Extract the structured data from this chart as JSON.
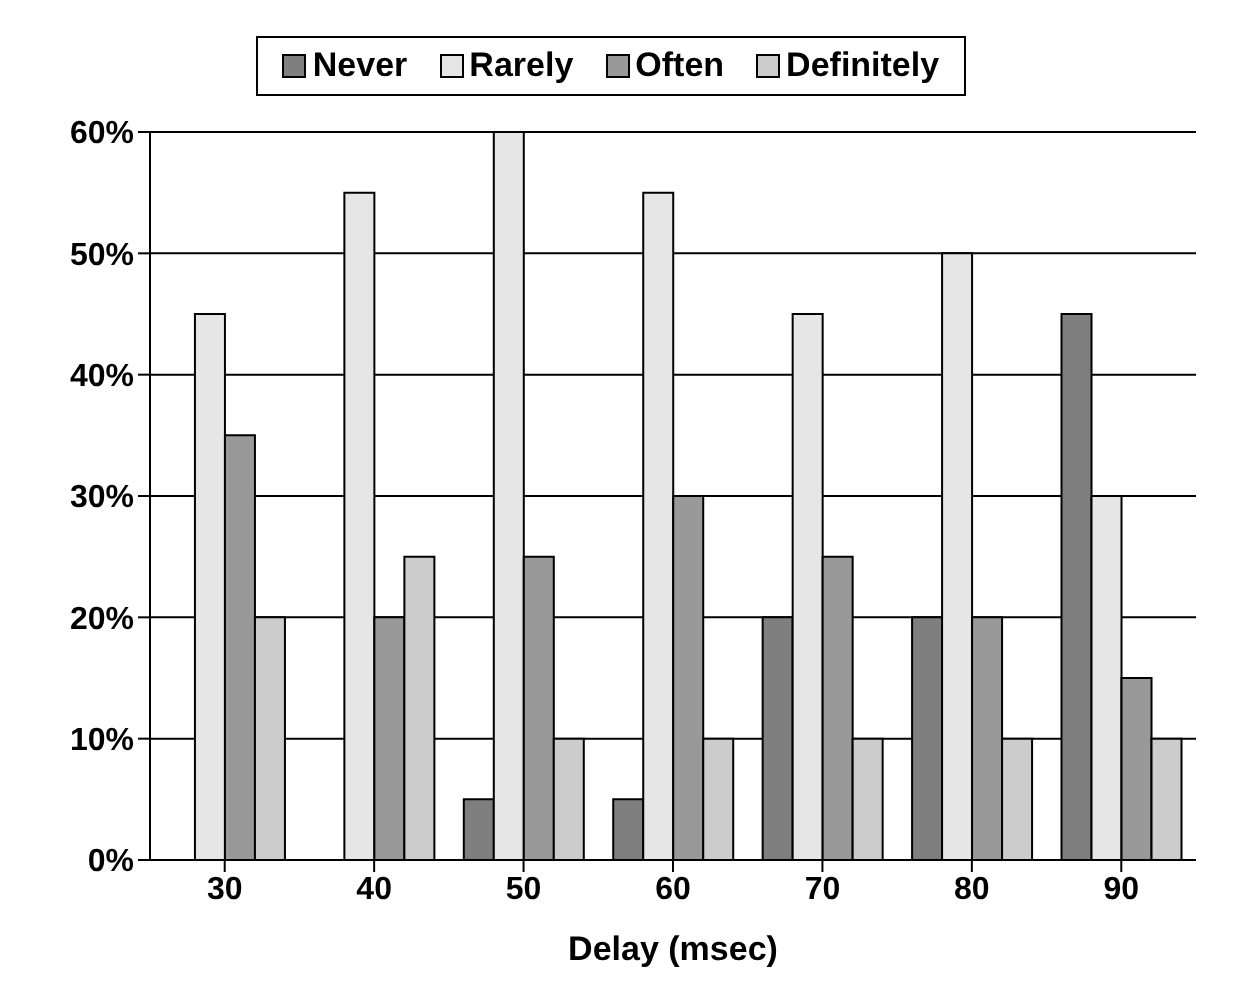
{
  "chart_data": {
    "type": "bar",
    "xlabel": "Delay (msec)",
    "categories": [
      "30",
      "40",
      "50",
      "60",
      "70",
      "80",
      "90"
    ],
    "series": [
      {
        "name": "Never",
        "color": "#7f7f7f",
        "values": [
          0,
          0,
          5,
          5,
          20,
          20,
          45
        ]
      },
      {
        "name": "Rarely",
        "color": "#e6e6e6",
        "values": [
          45,
          55,
          60,
          55,
          45,
          50,
          30
        ]
      },
      {
        "name": "Often",
        "color": "#999999",
        "values": [
          35,
          20,
          25,
          30,
          25,
          20,
          15
        ]
      },
      {
        "name": "Definitely",
        "color": "#cccccc",
        "values": [
          20,
          25,
          10,
          10,
          10,
          10,
          10
        ]
      }
    ],
    "ylim": [
      0,
      60
    ],
    "yticks": [
      {
        "value": 0,
        "label": "0%"
      },
      {
        "value": 10,
        "label": "10%"
      },
      {
        "value": 20,
        "label": "20%"
      },
      {
        "value": 30,
        "label": "30%"
      },
      {
        "value": 40,
        "label": "40%"
      },
      {
        "value": 50,
        "label": "50%"
      },
      {
        "value": 60,
        "label": "60%"
      }
    ],
    "grid": "y",
    "legend": "top"
  }
}
